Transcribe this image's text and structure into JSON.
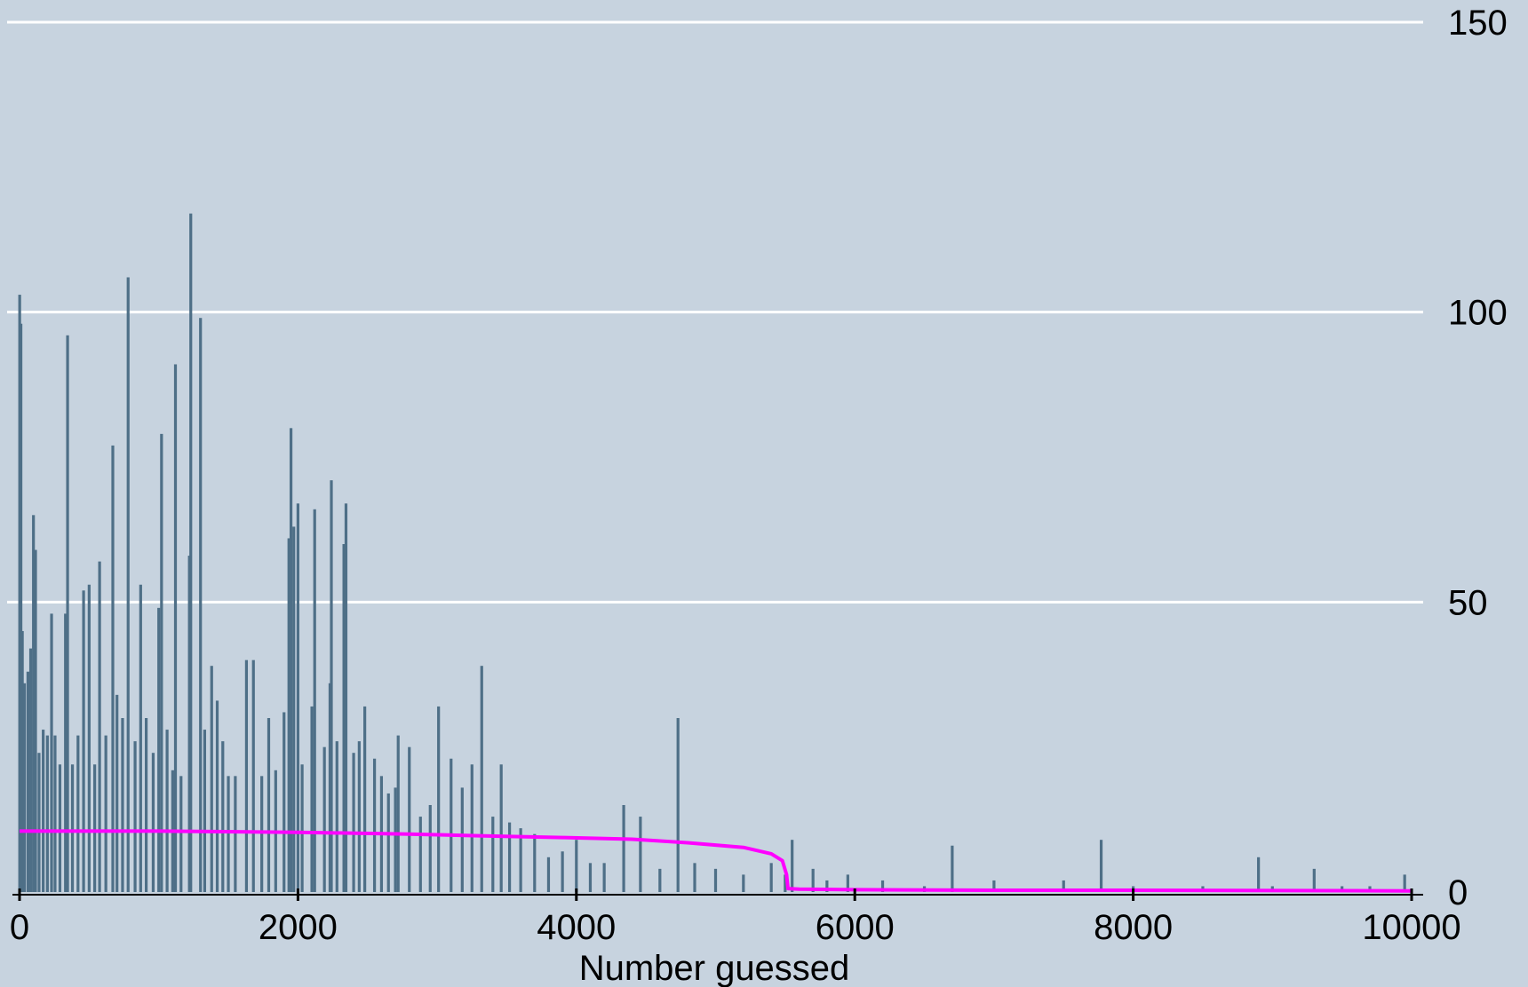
{
  "chart_data": {
    "type": "bar",
    "title": "",
    "xlabel": "Number guessed",
    "ylabel": "",
    "xlim": [
      0,
      10000
    ],
    "ylim": [
      0,
      150
    ],
    "x_ticks": [
      0,
      2000,
      4000,
      6000,
      8000,
      10000
    ],
    "y_ticks": [
      0,
      50,
      100,
      150
    ],
    "y_axis_position": "right",
    "grid": "horizontal",
    "colors": {
      "background": "#c7d3df",
      "bars": "#4e6f87",
      "line": "#ff00ff",
      "grid": "#ffffff",
      "axis": "#000000"
    },
    "series": [
      {
        "type": "bar",
        "points": [
          [
            1,
            103
          ],
          [
            10,
            98
          ],
          [
            20,
            45
          ],
          [
            35,
            36
          ],
          [
            60,
            38
          ],
          [
            80,
            42
          ],
          [
            100,
            65
          ],
          [
            115,
            59
          ],
          [
            140,
            24
          ],
          [
            170,
            28
          ],
          [
            200,
            27
          ],
          [
            230,
            48
          ],
          [
            255,
            27
          ],
          [
            290,
            22
          ],
          [
            330,
            48
          ],
          [
            345,
            96
          ],
          [
            380,
            22
          ],
          [
            420,
            27
          ],
          [
            460,
            52
          ],
          [
            500,
            53
          ],
          [
            540,
            22
          ],
          [
            575,
            57
          ],
          [
            620,
            27
          ],
          [
            670,
            77
          ],
          [
            700,
            34
          ],
          [
            740,
            30
          ],
          [
            780,
            106
          ],
          [
            830,
            26
          ],
          [
            870,
            53
          ],
          [
            910,
            30
          ],
          [
            960,
            24
          ],
          [
            1000,
            49
          ],
          [
            1020,
            79
          ],
          [
            1060,
            28
          ],
          [
            1100,
            21
          ],
          [
            1120,
            91
          ],
          [
            1160,
            20
          ],
          [
            1220,
            58
          ],
          [
            1230,
            117
          ],
          [
            1300,
            99
          ],
          [
            1330,
            28
          ],
          [
            1380,
            39
          ],
          [
            1420,
            33
          ],
          [
            1460,
            26
          ],
          [
            1500,
            20
          ],
          [
            1550,
            20
          ],
          [
            1630,
            40
          ],
          [
            1680,
            40
          ],
          [
            1740,
            20
          ],
          [
            1790,
            30
          ],
          [
            1840,
            21
          ],
          [
            1900,
            31
          ],
          [
            1935,
            61
          ],
          [
            1950,
            80
          ],
          [
            1970,
            63
          ],
          [
            2000,
            67
          ],
          [
            2030,
            22
          ],
          [
            2100,
            32
          ],
          [
            2120,
            66
          ],
          [
            2190,
            25
          ],
          [
            2230,
            36
          ],
          [
            2240,
            71
          ],
          [
            2280,
            26
          ],
          [
            2330,
            60
          ],
          [
            2345,
            67
          ],
          [
            2400,
            24
          ],
          [
            2440,
            26
          ],
          [
            2480,
            32
          ],
          [
            2550,
            23
          ],
          [
            2600,
            20
          ],
          [
            2650,
            17
          ],
          [
            2700,
            18
          ],
          [
            2720,
            27
          ],
          [
            2800,
            25
          ],
          [
            2880,
            13
          ],
          [
            2950,
            15
          ],
          [
            3010,
            32
          ],
          [
            3100,
            23
          ],
          [
            3180,
            18
          ],
          [
            3250,
            22
          ],
          [
            3320,
            39
          ],
          [
            3400,
            13
          ],
          [
            3460,
            22
          ],
          [
            3520,
            12
          ],
          [
            3600,
            11
          ],
          [
            3700,
            10
          ],
          [
            3800,
            6
          ],
          [
            3900,
            7
          ],
          [
            4000,
            9
          ],
          [
            4100,
            5
          ],
          [
            4200,
            5
          ],
          [
            4340,
            15
          ],
          [
            4460,
            13
          ],
          [
            4600,
            4
          ],
          [
            4730,
            30
          ],
          [
            4850,
            5
          ],
          [
            5000,
            4
          ],
          [
            5200,
            3
          ],
          [
            5400,
            5
          ],
          [
            5500,
            3
          ],
          [
            5550,
            9
          ],
          [
            5700,
            4
          ],
          [
            5800,
            2
          ],
          [
            5950,
            3
          ],
          [
            6200,
            2
          ],
          [
            6500,
            1
          ],
          [
            6700,
            8
          ],
          [
            7000,
            2
          ],
          [
            7500,
            2
          ],
          [
            7770,
            9
          ],
          [
            8000,
            1
          ],
          [
            8500,
            1
          ],
          [
            8900,
            6
          ],
          [
            9000,
            1
          ],
          [
            9300,
            4
          ],
          [
            9500,
            1
          ],
          [
            9700,
            1
          ],
          [
            9950,
            3
          ]
        ]
      },
      {
        "type": "line",
        "points": [
          [
            0,
            10.5
          ],
          [
            1000,
            10.5
          ],
          [
            2000,
            10.3
          ],
          [
            2800,
            10
          ],
          [
            3300,
            9.7
          ],
          [
            3900,
            9.4
          ],
          [
            4400,
            9.1
          ],
          [
            4800,
            8.5
          ],
          [
            5200,
            7.7
          ],
          [
            5400,
            6.6
          ],
          [
            5480,
            5.4
          ],
          [
            5510,
            3
          ],
          [
            5520,
            0.6
          ],
          [
            5600,
            0.5
          ],
          [
            6000,
            0.4
          ],
          [
            7000,
            0.3
          ],
          [
            8000,
            0.3
          ],
          [
            10000,
            0.2
          ]
        ]
      }
    ]
  }
}
